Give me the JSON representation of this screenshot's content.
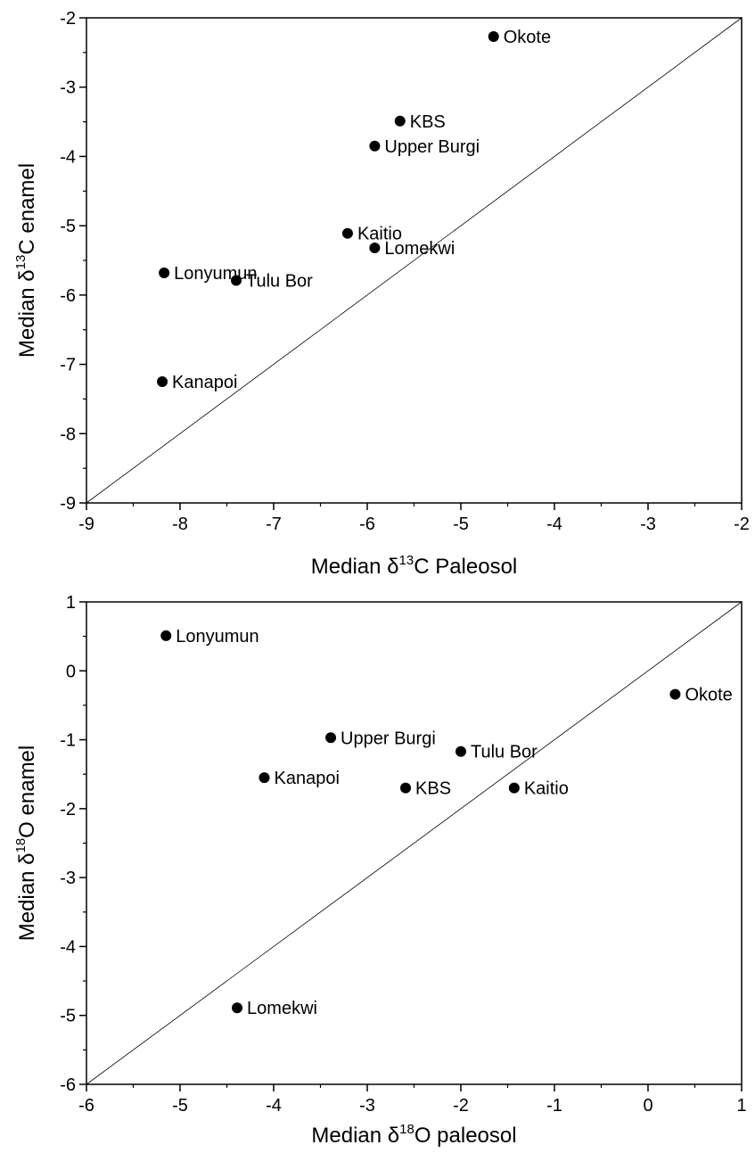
{
  "chart_data": [
    {
      "type": "scatter",
      "title": "",
      "xlabel": {
        "prefix": "Median ",
        "symbol": "δ",
        "sup": "13",
        "suffix": "C Paleosol"
      },
      "ylabel": {
        "prefix": "Median ",
        "symbol": "δ",
        "sup": "13",
        "suffix": "C enamel"
      },
      "xlim": [
        -9,
        -2
      ],
      "ylim": [
        -9,
        -2
      ],
      "xticks": [
        -9,
        -8,
        -7,
        -6,
        -5,
        -4,
        -3,
        -2
      ],
      "yticks": [
        -9,
        -8,
        -7,
        -6,
        -5,
        -4,
        -3,
        -2
      ],
      "xtick_labels": [
        "-9",
        "-8",
        "-7",
        "-6",
        "-5",
        "-4",
        "-3",
        "-2"
      ],
      "ytick_labels": [
        "-9",
        "-8",
        "-7",
        "-6",
        "-5",
        "-4",
        "-3",
        "-2"
      ],
      "reference_line": "1:1",
      "grid": false,
      "points": [
        {
          "label": "Okote",
          "x": -4.65,
          "y": -2.27
        },
        {
          "label": "KBS",
          "x": -5.65,
          "y": -3.49
        },
        {
          "label": "Upper Burgi",
          "x": -5.92,
          "y": -3.85
        },
        {
          "label": "Kaitio",
          "x": -6.21,
          "y": -5.11
        },
        {
          "label": "Lomekwi",
          "x": -5.92,
          "y": -5.32
        },
        {
          "label": "Lonyumun",
          "x": -8.17,
          "y": -5.68
        },
        {
          "label": "Tulu Bor",
          "x": -7.4,
          "y": -5.79
        },
        {
          "label": "Kanapoi",
          "x": -8.19,
          "y": -7.25
        }
      ]
    },
    {
      "type": "scatter",
      "title": "",
      "xlabel": {
        "prefix": "Median ",
        "symbol": "δ",
        "sup": "18",
        "suffix": "O paleosol"
      },
      "ylabel": {
        "prefix": "Median ",
        "symbol": "δ",
        "sup": "18",
        "suffix": "O enamel"
      },
      "xlim": [
        -6,
        1
      ],
      "ylim": [
        -6,
        1
      ],
      "xticks": [
        -6,
        -5,
        -4,
        -3,
        -2,
        -1,
        0,
        1
      ],
      "yticks": [
        -6,
        -5,
        -4,
        -3,
        -2,
        -1,
        0,
        1
      ],
      "xtick_labels": [
        "-6",
        "-5",
        "-4",
        "-3",
        "-2",
        "-1",
        "0",
        "1"
      ],
      "ytick_labels": [
        "-6",
        "-5",
        "-4",
        "-3",
        "-2",
        "-1",
        "0",
        "1"
      ],
      "reference_line": "1:1",
      "grid": false,
      "points": [
        {
          "label": "Lonyumun",
          "x": -5.15,
          "y": 0.51
        },
        {
          "label": "Okote",
          "x": 0.29,
          "y": -0.34
        },
        {
          "label": "Upper Burgi",
          "x": -3.39,
          "y": -0.97
        },
        {
          "label": "Tulu Bor",
          "x": -2.0,
          "y": -1.17
        },
        {
          "label": "Kanapoi",
          "x": -4.1,
          "y": -1.55
        },
        {
          "label": "KBS",
          "x": -2.59,
          "y": -1.7
        },
        {
          "label": "Kaitio",
          "x": -1.43,
          "y": -1.7
        },
        {
          "label": "Lomekwi",
          "x": -4.39,
          "y": -4.89
        }
      ]
    }
  ]
}
